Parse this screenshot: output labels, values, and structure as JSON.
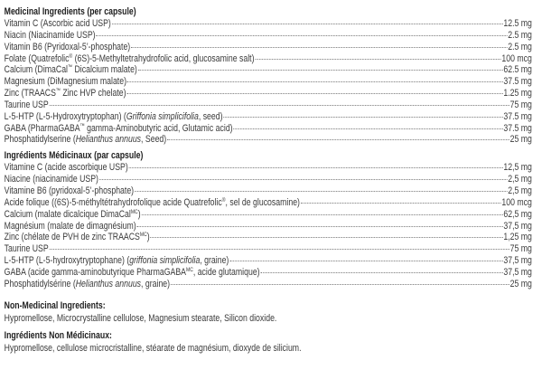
{
  "english": {
    "heading": "Medicinal Ingredients (per capsule)",
    "rows": [
      {
        "name": [
          {
            "t": "Vitamin C (Ascorbic acid USP)"
          }
        ],
        "amount": "12.5 mg"
      },
      {
        "name": [
          {
            "t": "Niacin (Niacinamide USP)"
          }
        ],
        "amount": "2.5 mg"
      },
      {
        "name": [
          {
            "t": "Vitamin B6 (Pyridoxal-5’-phosphate)"
          }
        ],
        "amount": "2.5 mg"
      },
      {
        "name": [
          {
            "t": "Folate (Quatrefolic"
          },
          {
            "t": "®",
            "sup": true
          },
          {
            "t": " (6S)-5-Methyltetrahydrofolic acid, glucosamine salt)"
          }
        ],
        "amount": "100 mcg"
      },
      {
        "name": [
          {
            "t": "Calcium (DimaCal"
          },
          {
            "t": "™",
            "sup": true
          },
          {
            "t": " Dicalcium malate)"
          }
        ],
        "amount": "62.5 mg"
      },
      {
        "name": [
          {
            "t": "Magnesium (DiMagnesium malate)"
          }
        ],
        "amount": "37.5 mg"
      },
      {
        "name": [
          {
            "t": "Zinc (TRAACS"
          },
          {
            "t": "™",
            "sup": true
          },
          {
            "t": " Zinc HVP chelate)"
          }
        ],
        "amount": "1.25 mg"
      },
      {
        "name": [
          {
            "t": "Taurine USP"
          }
        ],
        "amount": "75 mg"
      },
      {
        "name": [
          {
            "t": "L-5-HTP (L-5-Hydroxytryptophan) ("
          },
          {
            "t": "Griffonia simplicifolia",
            "i": true
          },
          {
            "t": ", seed)"
          }
        ],
        "amount": "37.5 mg"
      },
      {
        "name": [
          {
            "t": "GABA (PharmaGABA"
          },
          {
            "t": "™",
            "sup": true
          },
          {
            "t": " gamma-Aminobutyric acid, Glutamic acid)"
          }
        ],
        "amount": "37.5 mg"
      },
      {
        "name": [
          {
            "t": "Phosphatidylserine ("
          },
          {
            "t": "Helianthus annuus",
            "i": true
          },
          {
            "t": ", Seed)"
          }
        ],
        "amount": "25 mg"
      }
    ]
  },
  "french": {
    "heading": "Ingrédients Médicinaux (par capsule)",
    "rows": [
      {
        "name": [
          {
            "t": "Vitamine C (acide ascorbique USP)"
          }
        ],
        "amount": "12,5 mg"
      },
      {
        "name": [
          {
            "t": "Niacine (niacinamide USP)"
          }
        ],
        "amount": "2,5 mg"
      },
      {
        "name": [
          {
            "t": "Vitamine B6 (pyridoxal-5’-phosphate)"
          }
        ],
        "amount": "2,5 mg"
      },
      {
        "name": [
          {
            "t": "Acide folique ((6S)-5-méthyltétrahydrofolique acide Quatrefolic"
          },
          {
            "t": "®",
            "sup": true
          },
          {
            "t": ", sel de glucosamine)"
          }
        ],
        "amount": "100 mcg"
      },
      {
        "name": [
          {
            "t": "Calcium (malate dicalcique DimaCal"
          },
          {
            "t": "MC",
            "sup": true
          },
          {
            "t": ")"
          }
        ],
        "amount": "62,5 mg"
      },
      {
        "name": [
          {
            "t": "Magnésium (malate de dimagnésium)"
          }
        ],
        "amount": "37,5 mg"
      },
      {
        "name": [
          {
            "t": "Zinc (chélate de PVH de zinc TRAACS"
          },
          {
            "t": "MC",
            "sup": true
          },
          {
            "t": ")"
          }
        ],
        "amount": "1,25 mg"
      },
      {
        "name": [
          {
            "t": "Taurine USP"
          }
        ],
        "amount": "75 mg"
      },
      {
        "name": [
          {
            "t": "L-5-HTP (L-5-hydroxytryptophane) ("
          },
          {
            "t": "griffonia simplicifolia",
            "i": true
          },
          {
            "t": ", graine)"
          }
        ],
        "amount": "37,5 mg"
      },
      {
        "name": [
          {
            "t": "GABA (acide gamma-aminobutyrique PharmaGABA"
          },
          {
            "t": "MC",
            "sup": true
          },
          {
            "t": ", acide glutamique)"
          }
        ],
        "amount": "37,5 mg"
      },
      {
        "name": [
          {
            "t": "Phosphatidylsérine ("
          },
          {
            "t": "Helianthus annuus",
            "i": true
          },
          {
            "t": ", graine)"
          }
        ],
        "amount": "25 mg"
      }
    ]
  },
  "non_medicinal_en": {
    "heading": "Non-Medicinal Ingredients:",
    "text": "Hypromellose, Microcrystalline cellulose, Magnesium stearate, Silicon dioxide."
  },
  "non_medicinal_fr": {
    "heading": "Ingrédients Non Médicinaux:",
    "text": "Hypromellose, cellulose microcristalline, stéarate de magnésium, dioxyde de silicium."
  }
}
